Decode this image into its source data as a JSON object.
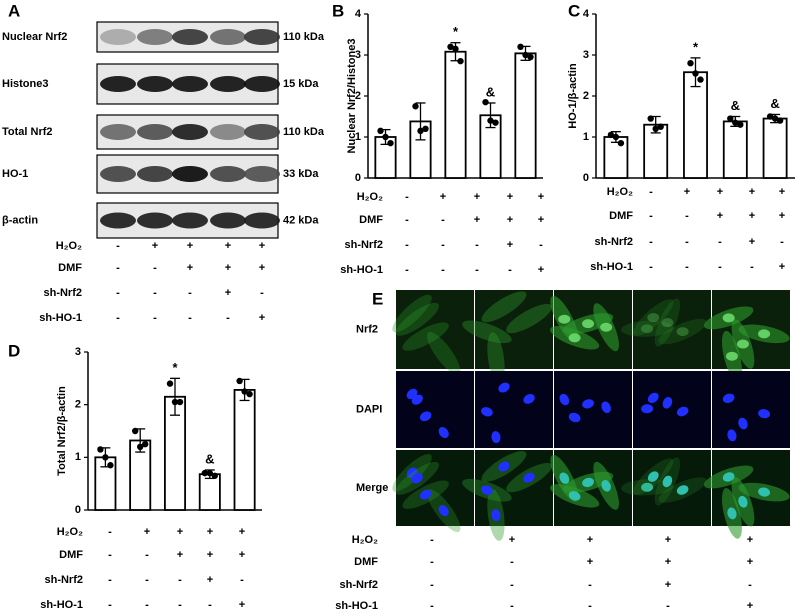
{
  "panel_labels": [
    "A",
    "B",
    "C",
    "D",
    "E"
  ],
  "treatments": {
    "rows": [
      "H₂O₂",
      "DMF",
      "sh-Nrf2",
      "sh-HO-1"
    ],
    "signs": [
      [
        "-",
        "+",
        "+",
        "+",
        "+"
      ],
      [
        "-",
        "-",
        "+",
        "+",
        "+"
      ],
      [
        "-",
        "-",
        "-",
        "+",
        "-"
      ],
      [
        "-",
        "-",
        "-",
        "-",
        "+"
      ]
    ]
  },
  "blot": {
    "proteins": [
      "Nuclear Nrf2",
      "Histone3",
      "Total Nrf2",
      "HO-1",
      "β-actin"
    ],
    "sizes": [
      "110 kDa",
      "15 kDa",
      "110 kDa",
      "33 kDa",
      "42 kDa"
    ]
  },
  "microscopy": {
    "rows": [
      "Nrf2",
      "DAPI",
      "Merge"
    ]
  },
  "chart_data": [
    {
      "type": "bar",
      "y_label": "Nuclear Nrf2/Histone3",
      "color": "#ffffff",
      "edge_color": "#000000",
      "values": [
        1.0,
        1.38,
        3.08,
        1.53,
        3.04
      ],
      "errors": [
        0.18,
        0.45,
        0.22,
        0.3,
        0.17
      ],
      "points": [
        [
          1.15,
          0.85,
          1.0
        ],
        [
          1.75,
          1.2,
          1.15
        ],
        [
          3.2,
          2.85,
          3.15
        ],
        [
          1.85,
          1.35,
          1.4
        ],
        [
          3.2,
          2.95,
          3.0
        ]
      ],
      "annotations": [
        null,
        null,
        "*",
        "&",
        null
      ],
      "ylim": [
        0,
        4
      ],
      "yticks": [
        0,
        1,
        2,
        3,
        4
      ]
    },
    {
      "type": "bar",
      "y_label": "HO-1/β-actin",
      "color": "#ffffff",
      "edge_color": "#000000",
      "values": [
        1.0,
        1.3,
        2.58,
        1.38,
        1.45
      ],
      "errors": [
        0.13,
        0.2,
        0.35,
        0.12,
        0.1
      ],
      "points": [
        [
          1.05,
          0.85,
          1.0
        ],
        [
          1.45,
          1.25,
          1.2
        ],
        [
          2.8,
          2.4,
          2.55
        ],
        [
          1.45,
          1.3,
          1.35
        ],
        [
          1.5,
          1.4,
          1.45
        ]
      ],
      "annotations": [
        null,
        null,
        "*",
        "&",
        "&"
      ],
      "ylim": [
        0,
        4
      ],
      "yticks": [
        0,
        1,
        2,
        3,
        4
      ]
    },
    {
      "type": "bar",
      "y_label": "Total Nrf2/β-actin",
      "color": "#ffffff",
      "edge_color": "#000000",
      "values": [
        1.0,
        1.32,
        2.15,
        0.68,
        2.28
      ],
      "errors": [
        0.18,
        0.22,
        0.35,
        0.08,
        0.2
      ],
      "points": [
        [
          1.15,
          0.85,
          1.0
        ],
        [
          1.5,
          1.25,
          1.2
        ],
        [
          2.4,
          2.05,
          2.05
        ],
        [
          0.7,
          0.65,
          0.7
        ],
        [
          2.45,
          2.2,
          2.25
        ]
      ],
      "annotations": [
        null,
        null,
        "*",
        "&",
        null
      ],
      "ylim": [
        0,
        3
      ],
      "yticks": [
        0,
        1,
        2,
        3
      ]
    }
  ]
}
